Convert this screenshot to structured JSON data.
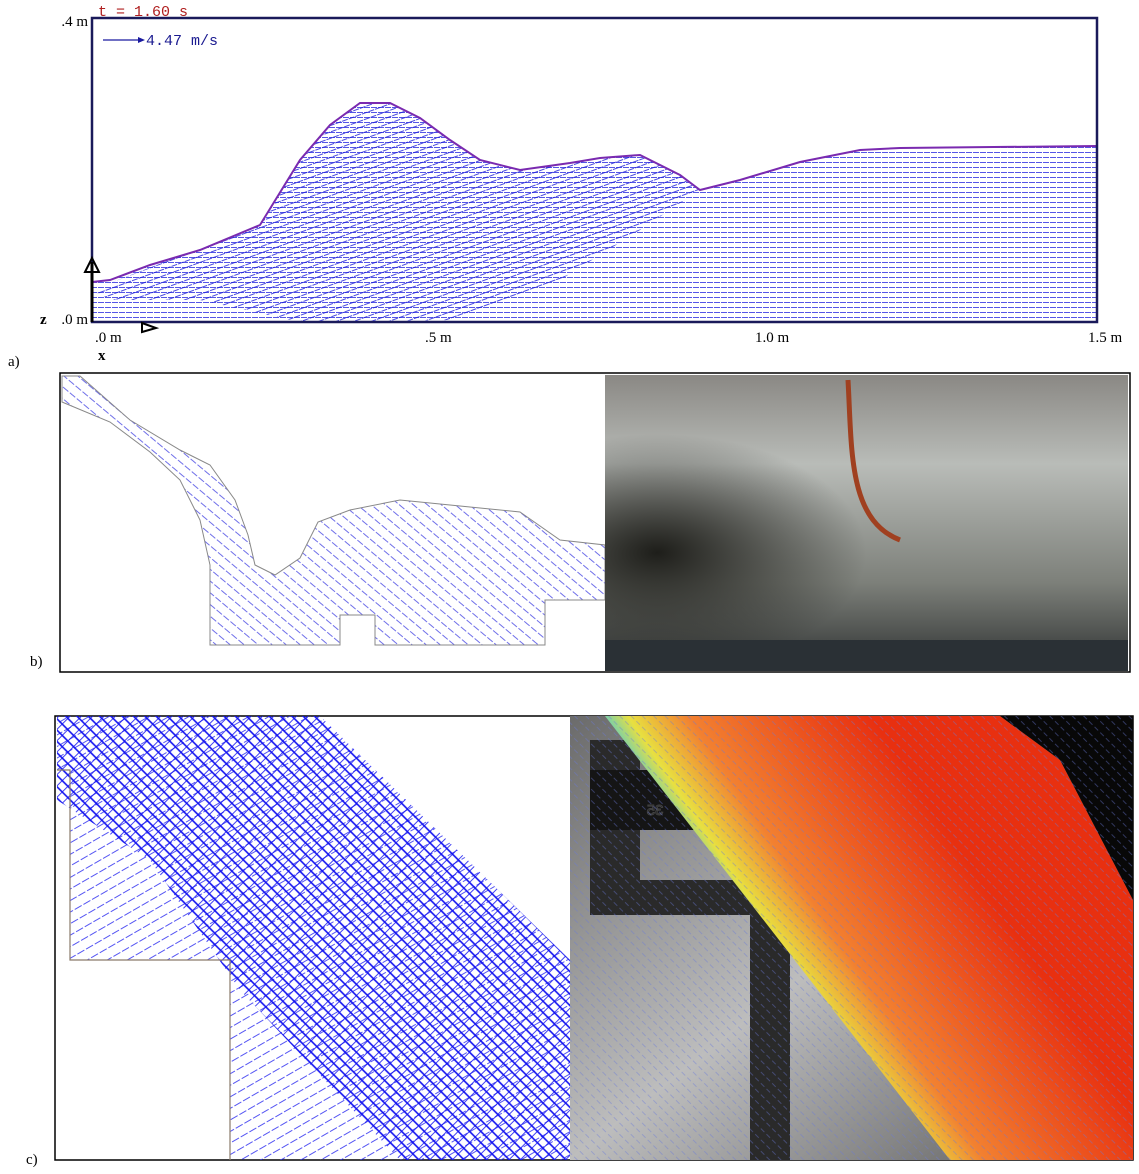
{
  "panel_a": {
    "label": "a)",
    "time": "t = 1.60 s",
    "scale": "4.47 m/s",
    "y_top": ".4 m",
    "z_axis_name": "z",
    "y_bottom": ".0 m",
    "x_axis_name": "x",
    "x_ticks": [
      ".0 m",
      ".5 m",
      "1.0 m",
      "1.5 m"
    ]
  },
  "panel_b": {
    "label": "b)"
  },
  "panel_c": {
    "label": "c)",
    "sign": "35"
  }
}
